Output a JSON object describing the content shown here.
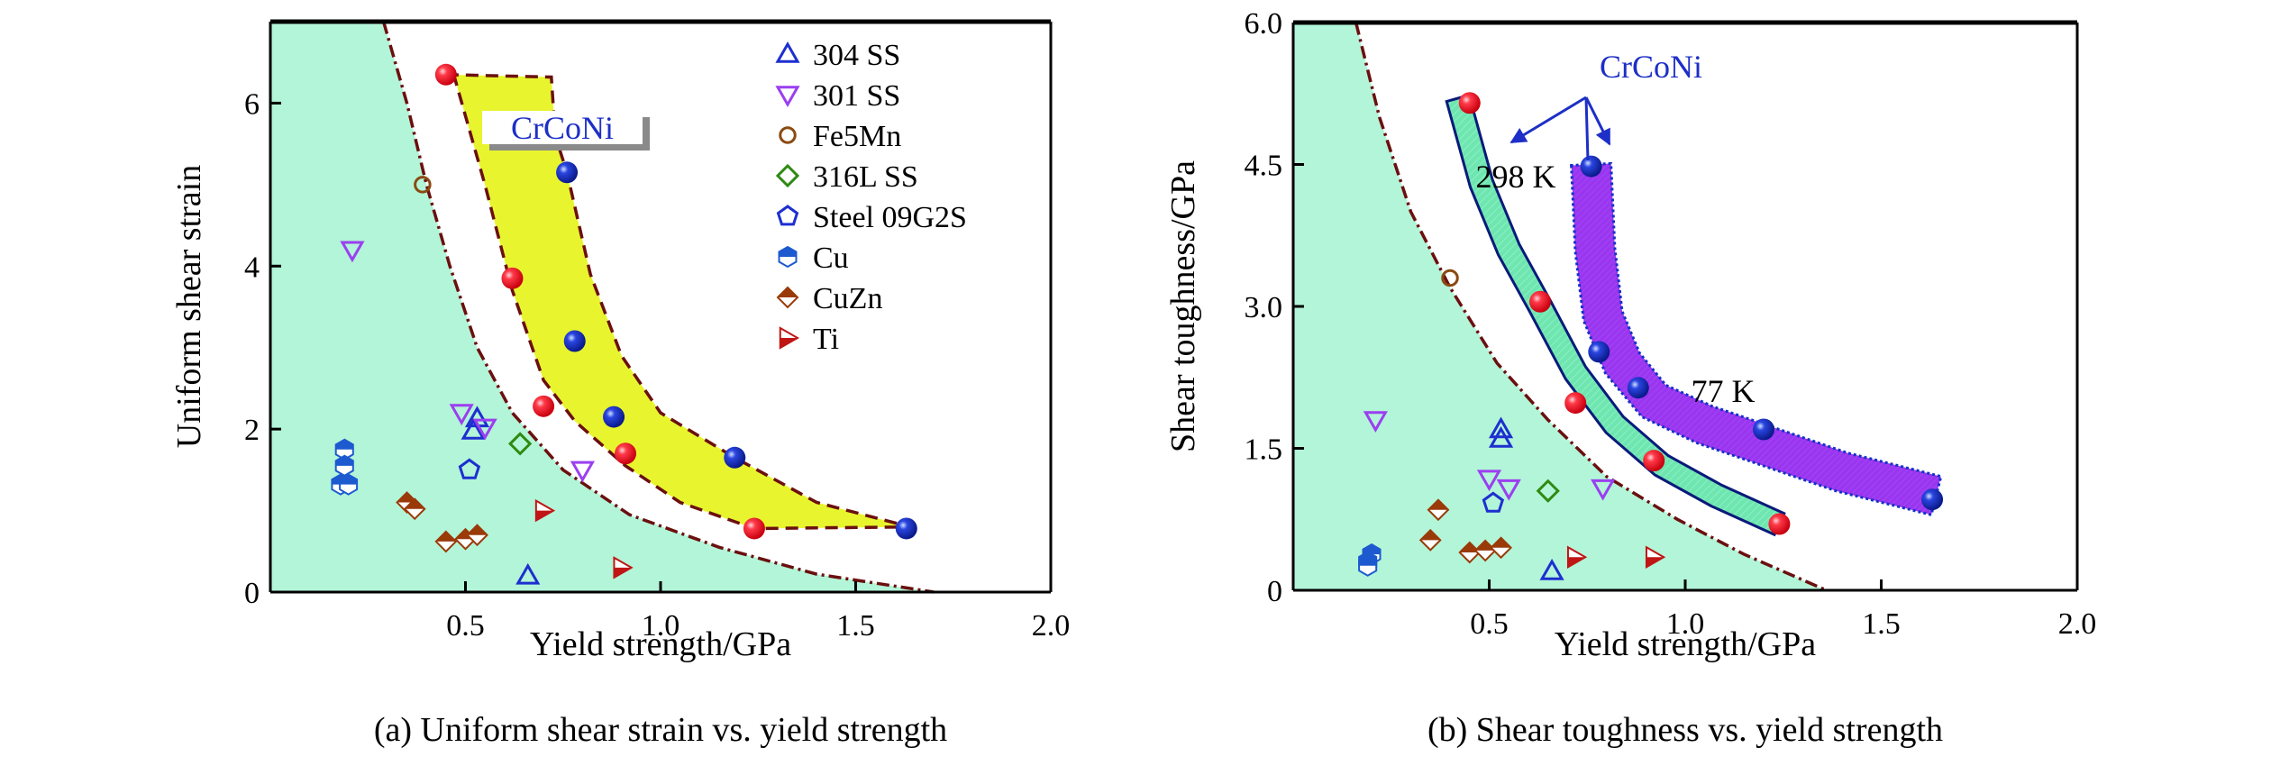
{
  "colors": {
    "brittle_region": "#b3f5d8",
    "band_298K_left": "#e8f52e",
    "band_298K_right": "#6fe6b0",
    "band_77K_right": "#9a35f0",
    "boundary": "#6b0f0f",
    "crconi_label": "#1d2fc7",
    "red_marker": "#ff1a2a",
    "blue_marker": "#1530c8"
  },
  "legend": [
    {
      "name": "304 SS",
      "marker": "triangle-up-open",
      "color": "#1d2fd0"
    },
    {
      "name": "301 SS",
      "marker": "triangle-down-open",
      "color": "#9b3ff0"
    },
    {
      "name": "Fe5Mn",
      "marker": "circle-open",
      "color": "#8a4a12"
    },
    {
      "name": "316L SS",
      "marker": "diamond-open",
      "color": "#2e8a12"
    },
    {
      "name": "Steel 09G2S",
      "marker": "pentagon-open",
      "color": "#1d2fd0"
    },
    {
      "name": "Cu",
      "marker": "hexagon-half",
      "color": "#1d5ad0"
    },
    {
      "name": "CuZn",
      "marker": "diamond-half",
      "color": "#9a3a08"
    },
    {
      "name": "Ti",
      "marker": "triangle-right-half",
      "color": "#c01515"
    }
  ],
  "chart_data": [
    {
      "type": "scatter",
      "title": "",
      "caption": "(a) Uniform shear strain vs. yield strength",
      "xlabel": "Yield strength/GPa",
      "ylabel": "Uniform shear strain",
      "xlim": [
        0,
        2.0
      ],
      "ylim": [
        0,
        7.0
      ],
      "xticks": [
        {
          "v": 0.5,
          "label": "0.5"
        },
        {
          "v": 1.0,
          "label": "1.0"
        },
        {
          "v": 1.5,
          "label": "1.5"
        },
        {
          "v": 2.0,
          "label": "2.0"
        }
      ],
      "yticks": [
        {
          "v": 0,
          "label": "0"
        },
        {
          "v": 2,
          "label": "2"
        },
        {
          "v": 4,
          "label": "4"
        },
        {
          "v": 6,
          "label": "6"
        }
      ],
      "grid": false,
      "legend_position": "top-right",
      "annotations": [
        {
          "text": "CrCoNi",
          "x": 0.72,
          "y": 5.9
        }
      ],
      "boundary_curve": [
        [
          0.29,
          7.0
        ],
        [
          0.35,
          6.0
        ],
        [
          0.4,
          5.0
        ],
        [
          0.46,
          4.0
        ],
        [
          0.53,
          3.0
        ],
        [
          0.62,
          2.2
        ],
        [
          0.75,
          1.5
        ],
        [
          0.92,
          0.95
        ],
        [
          1.15,
          0.55
        ],
        [
          1.4,
          0.22
        ],
        [
          1.7,
          0.0
        ]
      ],
      "band": {
        "upper": [
          [
            0.45,
            6.35
          ],
          [
            0.72,
            6.32
          ],
          [
            0.73,
            5.6
          ],
          [
            0.76,
            5.15
          ],
          [
            0.82,
            3.9
          ],
          [
            0.9,
            2.9
          ],
          [
            1.0,
            2.2
          ],
          [
            1.19,
            1.65
          ],
          [
            1.4,
            1.1
          ],
          [
            1.64,
            0.8
          ]
        ],
        "lower": [
          [
            1.24,
            0.78
          ],
          [
            1.05,
            1.1
          ],
          [
            0.91,
            1.55
          ],
          [
            0.78,
            2.1
          ],
          [
            0.7,
            2.6
          ],
          [
            0.62,
            3.7
          ],
          [
            0.55,
            5.0
          ],
          [
            0.47,
            6.35
          ]
        ]
      },
      "series": [
        {
          "name": "CrCoNi 298 K",
          "marker": "sphere-red",
          "points": [
            [
              0.45,
              6.35
            ],
            [
              0.62,
              3.85
            ],
            [
              0.7,
              2.28
            ],
            [
              0.91,
              1.7
            ],
            [
              1.24,
              0.78
            ]
          ]
        },
        {
          "name": "CrCoNi 77 K",
          "marker": "sphere-blue",
          "points": [
            [
              0.76,
              5.15
            ],
            [
              0.78,
              3.08
            ],
            [
              0.88,
              2.15
            ],
            [
              1.19,
              1.65
            ],
            [
              1.63,
              0.78
            ]
          ]
        },
        {
          "name": "304 SS",
          "points": [
            [
              0.53,
              2.13
            ],
            [
              0.52,
              1.98
            ],
            [
              0.66,
              0.2
            ]
          ]
        },
        {
          "name": "301 SS",
          "points": [
            [
              0.21,
              4.2
            ],
            [
              0.49,
              2.2
            ],
            [
              0.55,
              2.02
            ],
            [
              0.8,
              1.5
            ]
          ]
        },
        {
          "name": "Fe5Mn",
          "points": [
            [
              0.39,
              5.0
            ]
          ]
        },
        {
          "name": "316L SS",
          "points": [
            [
              0.64,
              1.82
            ]
          ]
        },
        {
          "name": "Steel 09G2S",
          "points": [
            [
              0.51,
              1.5
            ]
          ]
        },
        {
          "name": "Cu",
          "points": [
            [
              0.19,
              1.75
            ],
            [
              0.19,
              1.55
            ],
            [
              0.18,
              1.32
            ],
            [
              0.2,
              1.32
            ]
          ]
        },
        {
          "name": "CuZn",
          "points": [
            [
              0.35,
              1.1
            ],
            [
              0.37,
              1.02
            ],
            [
              0.45,
              0.62
            ],
            [
              0.5,
              0.65
            ],
            [
              0.53,
              0.7
            ]
          ]
        },
        {
          "name": "Ti",
          "points": [
            [
              0.7,
              1.0
            ],
            [
              0.9,
              0.3
            ]
          ]
        }
      ]
    },
    {
      "type": "scatter",
      "title": "",
      "caption": "(b) Shear toughness vs. yield strength",
      "xlabel": "Yield strength/GPa",
      "ylabel": "Shear toughness/GPa",
      "xlim": [
        0,
        2.0
      ],
      "ylim": [
        0,
        6.0
      ],
      "xticks": [
        {
          "v": 0.5,
          "label": "0.5"
        },
        {
          "v": 1.0,
          "label": "1.0"
        },
        {
          "v": 1.5,
          "label": "1.5"
        },
        {
          "v": 2.0,
          "label": "2.0"
        }
      ],
      "yticks": [
        {
          "v": 0,
          "label": "0"
        },
        {
          "v": 1.5,
          "label": "1.5"
        },
        {
          "v": 3.0,
          "label": "3.0"
        },
        {
          "v": 4.5,
          "label": "4.5"
        },
        {
          "v": 6.0,
          "label": "6.0"
        }
      ],
      "grid": false,
      "annotations": [
        {
          "text": "CrCoNi",
          "x": 0.91,
          "y": 5.55,
          "color": "#1d2fc7"
        },
        {
          "text": "298 K",
          "x": 0.46,
          "y": 4.3
        },
        {
          "text": "77 K",
          "x": 0.89,
          "y": 2.1
        }
      ],
      "boundary_curve": [
        [
          0.16,
          6.0
        ],
        [
          0.22,
          5.0
        ],
        [
          0.3,
          4.0
        ],
        [
          0.4,
          3.2
        ],
        [
          0.52,
          2.4
        ],
        [
          0.65,
          1.8
        ],
        [
          0.8,
          1.2
        ],
        [
          0.98,
          0.75
        ],
        [
          1.15,
          0.38
        ],
        [
          1.36,
          0.0
        ]
      ],
      "band_298K": [
        [
          0.42,
          5.2
        ],
        [
          0.48,
          4.3
        ],
        [
          0.55,
          3.6
        ],
        [
          0.63,
          3.0
        ],
        [
          0.72,
          2.3
        ],
        [
          0.82,
          1.75
        ],
        [
          0.94,
          1.32
        ],
        [
          1.08,
          1.0
        ],
        [
          1.24,
          0.7
        ]
      ],
      "band_77K": [
        [
          0.76,
          4.5
        ],
        [
          0.77,
          3.6
        ],
        [
          0.79,
          2.9
        ],
        [
          0.84,
          2.4
        ],
        [
          0.92,
          2.0
        ],
        [
          1.05,
          1.75
        ],
        [
          1.19,
          1.55
        ],
        [
          1.4,
          1.25
        ],
        [
          1.64,
          1.0
        ]
      ],
      "series": [
        {
          "name": "CrCoNi 298 K",
          "marker": "sphere-red",
          "points": [
            [
              0.45,
              5.15
            ],
            [
              0.63,
              3.05
            ],
            [
              0.72,
              1.98
            ],
            [
              0.92,
              1.37
            ],
            [
              1.24,
              0.7
            ]
          ]
        },
        {
          "name": "CrCoNi 77 K",
          "marker": "sphere-blue",
          "points": [
            [
              0.76,
              4.48
            ],
            [
              0.78,
              2.52
            ],
            [
              0.88,
              2.14
            ],
            [
              1.2,
              1.7
            ],
            [
              1.63,
              0.96
            ]
          ]
        },
        {
          "name": "304 SS",
          "points": [
            [
              0.53,
              1.7
            ],
            [
              0.53,
              1.6
            ],
            [
              0.66,
              0.2
            ]
          ]
        },
        {
          "name": "301 SS",
          "points": [
            [
              0.21,
              1.8
            ],
            [
              0.5,
              1.18
            ],
            [
              0.55,
              1.08
            ],
            [
              0.79,
              1.08
            ]
          ]
        },
        {
          "name": "Fe5Mn",
          "points": [
            [
              0.4,
              3.3
            ]
          ]
        },
        {
          "name": "316L SS",
          "points": [
            [
              0.65,
              1.05
            ]
          ]
        },
        {
          "name": "Steel 09G2S",
          "points": [
            [
              0.51,
              0.92
            ]
          ]
        },
        {
          "name": "Cu",
          "points": [
            [
              0.2,
              0.38
            ],
            [
              0.19,
              0.3
            ],
            [
              0.19,
              0.26
            ]
          ]
        },
        {
          "name": "CuZn",
          "points": [
            [
              0.37,
              0.85
            ],
            [
              0.35,
              0.53
            ],
            [
              0.45,
              0.4
            ],
            [
              0.49,
              0.42
            ],
            [
              0.53,
              0.45
            ]
          ]
        },
        {
          "name": "Ti",
          "points": [
            [
              0.72,
              0.35
            ],
            [
              0.92,
              0.35
            ]
          ]
        }
      ]
    }
  ]
}
